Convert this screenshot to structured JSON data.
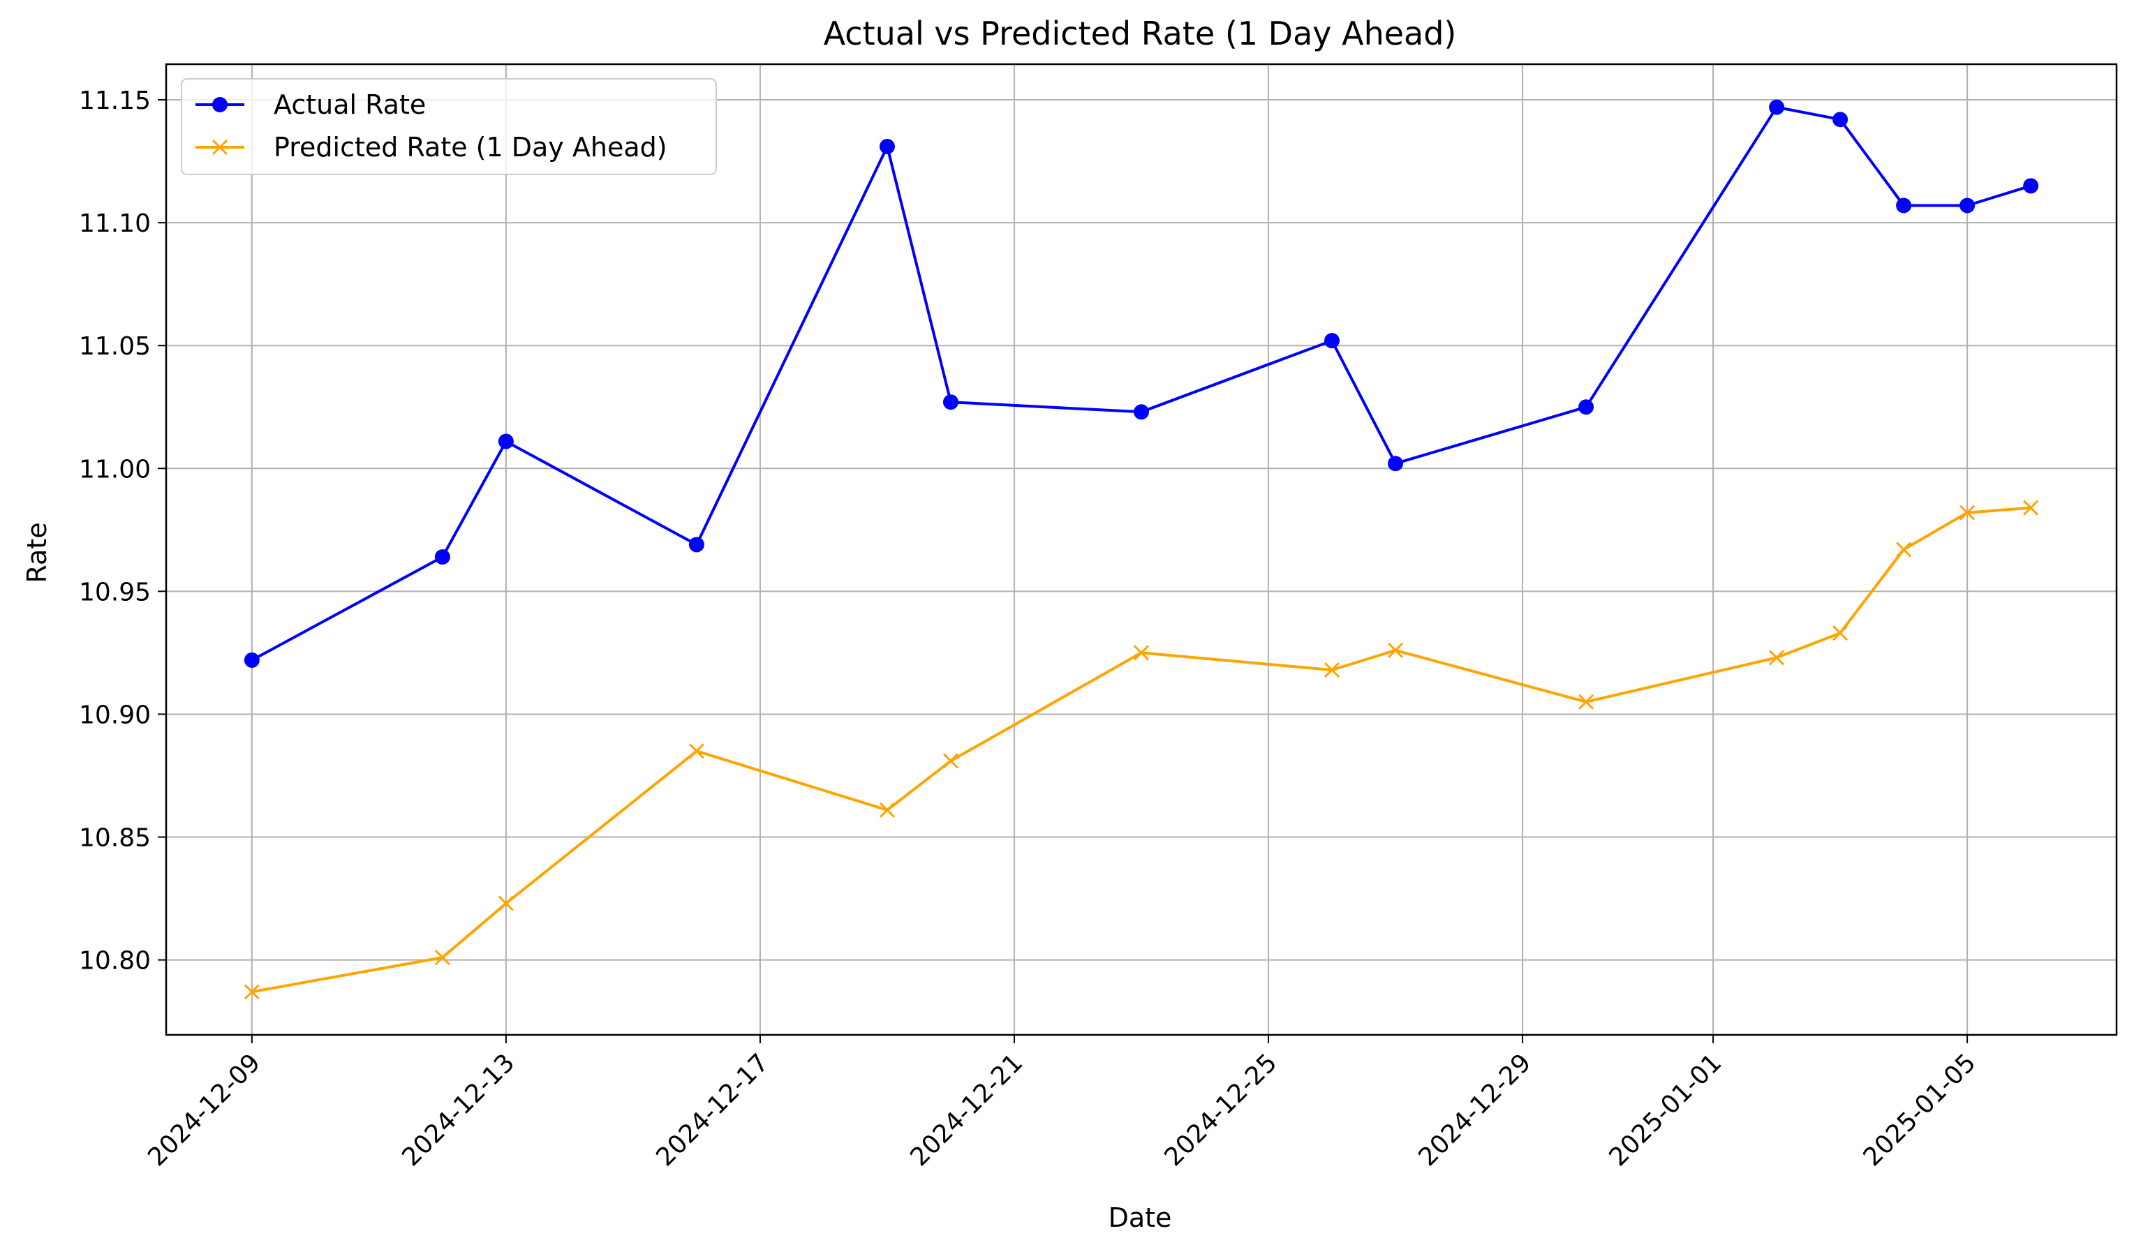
{
  "chart_data": {
    "type": "line",
    "title": "Actual vs Predicted Rate (1 Day Ahead)",
    "xlabel": "Date",
    "ylabel": "Rate",
    "x_axis_kind": "date",
    "xlim": [
      "2024-12-07T15:36",
      "2025-01-07T08:24"
    ],
    "ylim": [
      10.7695,
      11.1645
    ],
    "xticks": [
      "2024-12-09",
      "2024-12-13",
      "2024-12-17",
      "2024-12-21",
      "2024-12-25",
      "2024-12-29",
      "2025-01-01",
      "2025-01-05"
    ],
    "yticks": [
      10.8,
      10.85,
      10.9,
      10.95,
      11.0,
      11.05,
      11.1,
      11.15
    ],
    "grid": true,
    "legend_position": "top-left",
    "x": [
      "2024-12-09",
      "2024-12-12",
      "2024-12-13",
      "2024-12-16",
      "2024-12-19",
      "2024-12-20",
      "2024-12-23",
      "2024-12-26",
      "2024-12-27",
      "2024-12-30",
      "2025-01-02",
      "2025-01-03",
      "2025-01-04",
      "2025-01-05",
      "2025-01-06"
    ],
    "series": [
      {
        "name": "Actual Rate",
        "color": "#0000ff",
        "marker": "o",
        "values": [
          10.922,
          10.964,
          11.011,
          10.969,
          11.131,
          11.027,
          11.023,
          11.052,
          11.002,
          11.025,
          11.147,
          11.142,
          11.107,
          11.107,
          11.115
        ]
      },
      {
        "name": "Predicted Rate (1 Day Ahead)",
        "color": "#ffa500",
        "marker": "x",
        "values": [
          10.787,
          10.801,
          10.823,
          10.885,
          10.861,
          10.881,
          10.925,
          10.918,
          10.926,
          10.905,
          10.923,
          10.933,
          10.967,
          10.982,
          10.984
        ]
      }
    ]
  }
}
